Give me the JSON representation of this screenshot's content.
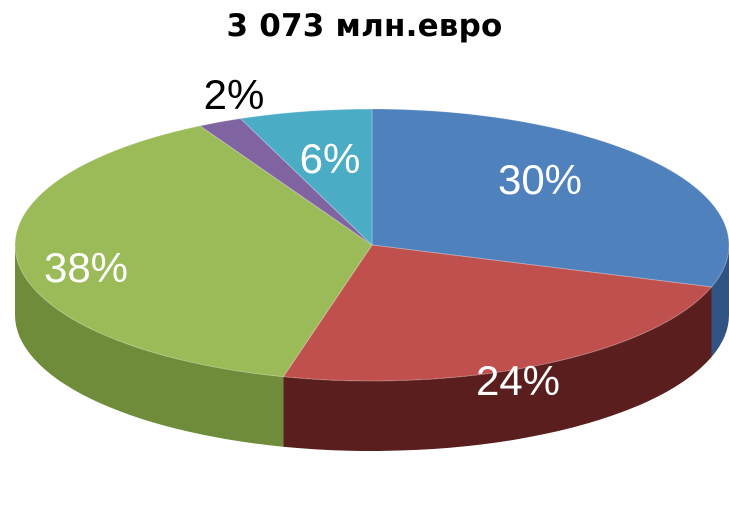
{
  "chart_data": {
    "type": "pie",
    "title": "3 073 млн.евро",
    "style": "3d",
    "slices": [
      {
        "label": "30%",
        "value": 30,
        "color": "#4f81bd",
        "side_color": "#2f5383"
      },
      {
        "label": "24%",
        "value": 24,
        "color": "#c0504d",
        "side_color": "#5a1e1e"
      },
      {
        "label": "38%",
        "value": 38,
        "color": "#9bbb59",
        "side_color": "#6e8c3a"
      },
      {
        "label": "2%",
        "value": 2,
        "color": "#8064a2",
        "side_color": "#4f3a6a"
      },
      {
        "label": "6%",
        "value": 6,
        "color": "#4bacc6",
        "side_color": "#2c7a8e"
      }
    ]
  }
}
